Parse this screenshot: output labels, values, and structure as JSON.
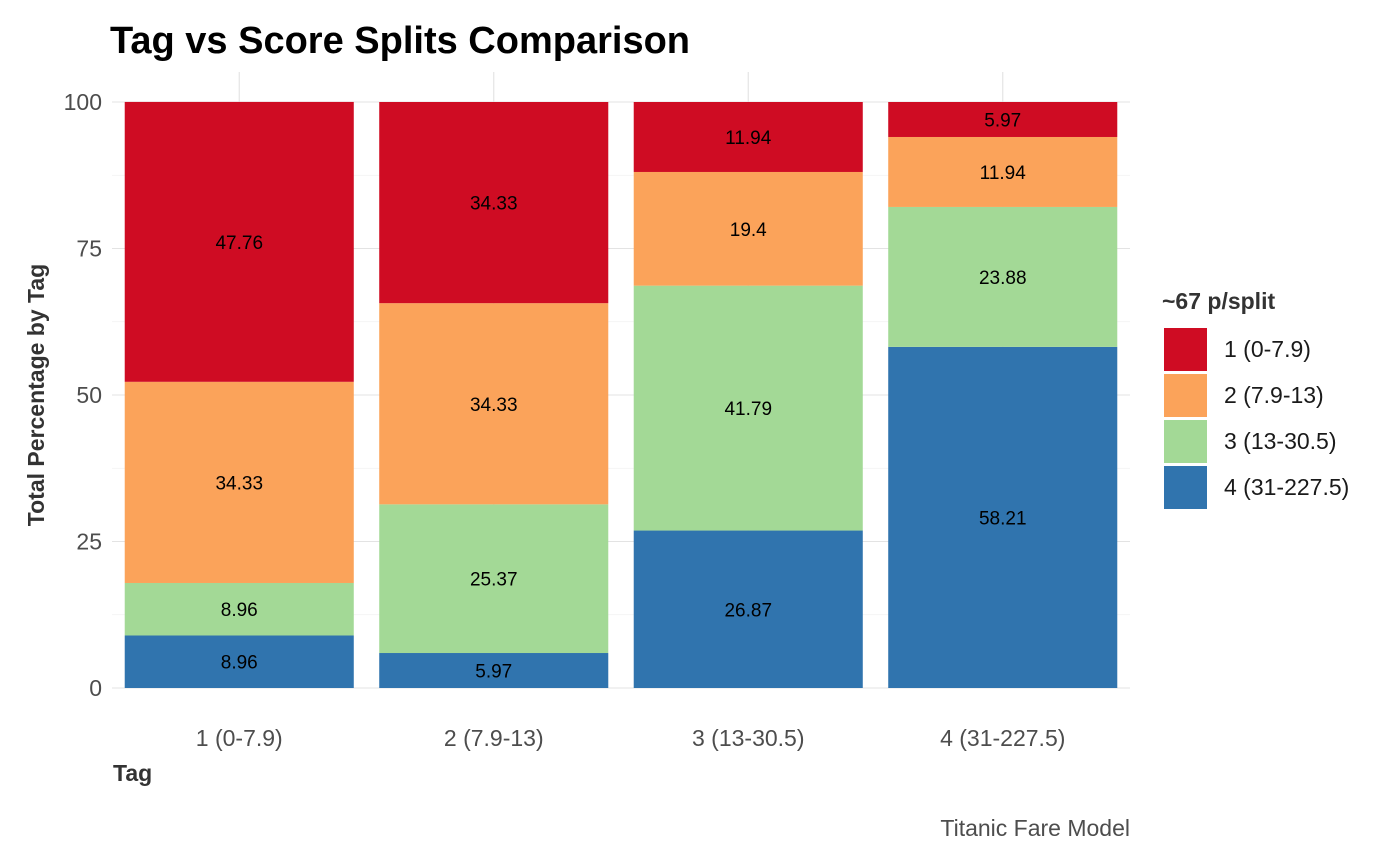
{
  "chart_data": {
    "type": "bar",
    "stacked": true,
    "title": "Tag vs Score Splits Comparison",
    "xlabel": "Tag",
    "ylabel": "Total Percentage by Tag",
    "caption": "Titanic Fare Model",
    "categories": [
      "1 (0-7.9)",
      "2 (7.9-13)",
      "3 (13-30.5)",
      "4 (31-227.5)"
    ],
    "ylim": [
      0,
      100
    ],
    "yticks": [
      0,
      25,
      50,
      75,
      100
    ],
    "grid": true,
    "legend": {
      "title": "~67 p/split",
      "position": "right"
    },
    "series": [
      {
        "name": "1 (0-7.9)",
        "color": "#CF0C23",
        "values": [
          47.76,
          34.33,
          11.94,
          5.97
        ],
        "labels": [
          "47.76",
          "34.33",
          "11.94",
          "5.97"
        ]
      },
      {
        "name": "2 (7.9-13)",
        "color": "#FBA35A",
        "values": [
          34.33,
          34.33,
          19.4,
          11.94
        ],
        "labels": [
          "34.33",
          "34.33",
          "19.4",
          "11.94"
        ]
      },
      {
        "name": "3 (13-30.5)",
        "color": "#A3D996",
        "values": [
          8.96,
          25.37,
          41.79,
          23.88
        ],
        "labels": [
          "8.96",
          "25.37",
          "41.79",
          "23.88"
        ]
      },
      {
        "name": "4 (31-227.5)",
        "color": "#3074AE",
        "values": [
          8.96,
          5.97,
          26.87,
          58.21
        ],
        "labels": [
          "8.96",
          "5.97",
          "26.87",
          "58.21"
        ]
      }
    ]
  }
}
